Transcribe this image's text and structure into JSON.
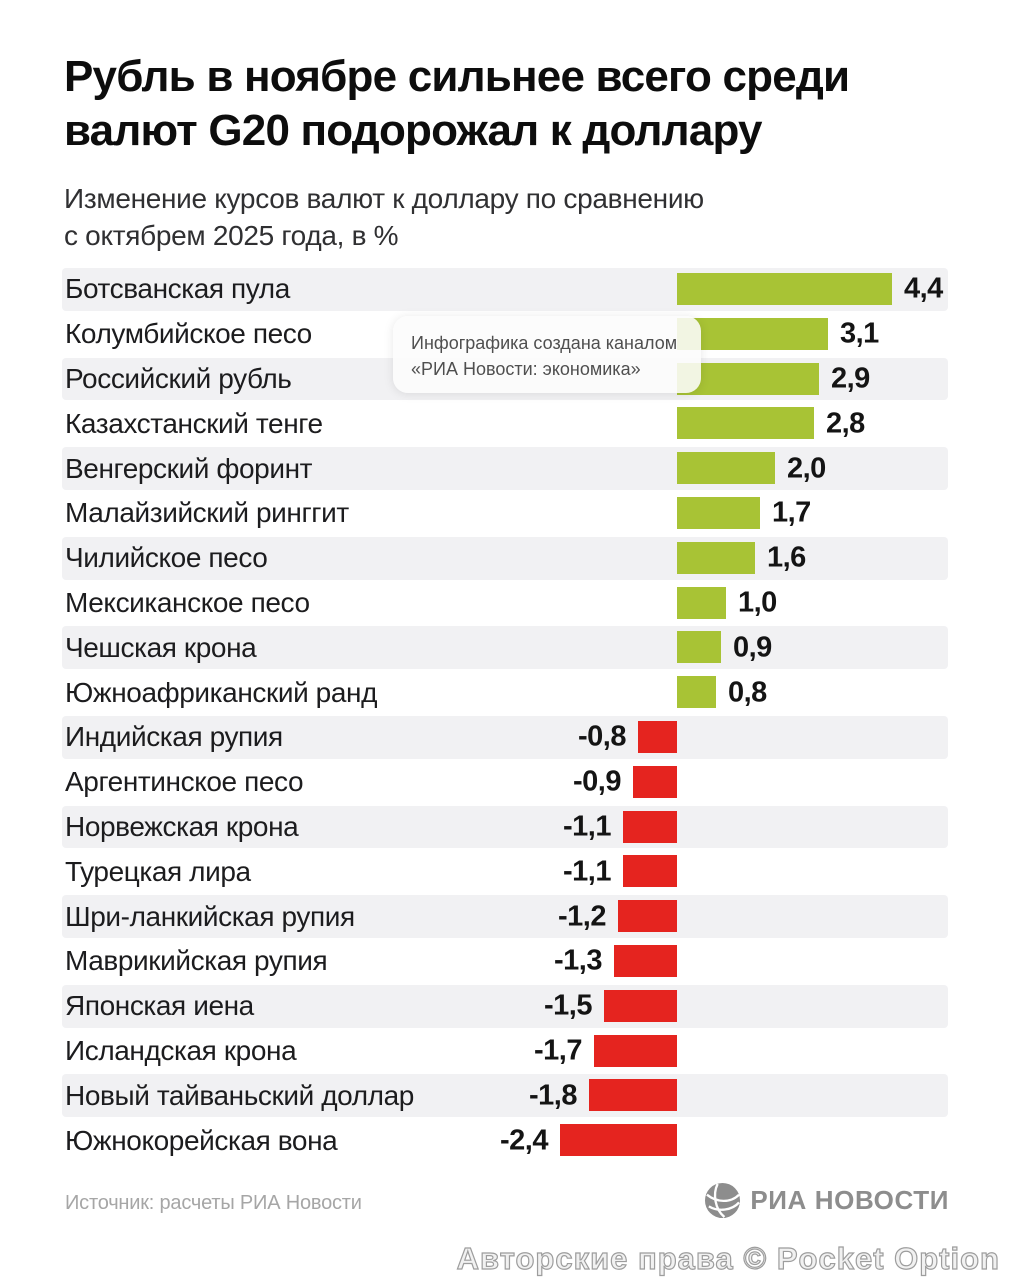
{
  "title": {
    "line1": "Рубль в ноябре сильнее всего среди",
    "line2": "валют G20 подорожал к доллару"
  },
  "subtitle": {
    "line1": "Изменение курсов валют к доллару по сравнению",
    "line2": "с октябрем 2025 года, в %"
  },
  "tooltip": {
    "line1": "Инфографика создана каналом",
    "line2": "«РИА Новости: экономика»"
  },
  "footer": {
    "source": "Источник: расчеты РИА Новости",
    "logo_text": "РИА НОВОСТИ",
    "logo_icon": "ria-globe-icon"
  },
  "watermark": "Авторские права © Pocket Option",
  "colors": {
    "positive_bar": "#a8c335",
    "negative_bar": "#e5241f",
    "row_stripe": "#f1f1f3",
    "title_text": "#0d0d0d",
    "muted_text": "#a6a6a6",
    "logo_gray": "#8d8d8d"
  },
  "chart_data": {
    "type": "bar",
    "orientation": "horizontal",
    "title": "Рубль в ноябре сильнее всего среди валют G20 подорожал к доллару",
    "subtitle": "Изменение курсов валют к доллару по сравнению с октябрем 2025 года, в %",
    "unit": "%",
    "xlim": [
      -2.4,
      4.4
    ],
    "grid": false,
    "legend": false,
    "categories": [
      "Ботсванская пула",
      "Колумбийское песо",
      "Российский рубль",
      "Казахстанский тенге",
      "Венгерский форинт",
      "Малайзийский ринггит",
      "Чилийское песо",
      "Мексиканское песо",
      "Чешская крона",
      "Южноафриканский ранд",
      "Индийская рупия",
      "Аргентинское песо",
      "Норвежская крона",
      "Турецкая лира",
      "Шри-ланкийская рупия",
      "Маврикийская рупия",
      "Японская иена",
      "Исландская крона",
      "Новый тайваньский доллар",
      "Южнокорейская вона"
    ],
    "values": [
      4.4,
      3.1,
      2.9,
      2.8,
      2.0,
      1.7,
      1.6,
      1.0,
      0.9,
      0.8,
      -0.8,
      -0.9,
      -1.1,
      -1.1,
      -1.2,
      -1.3,
      -1.5,
      -1.7,
      -1.8,
      -2.4
    ],
    "value_labels": [
      "4,4",
      "3,1",
      "2,9",
      "2,8",
      "2,0",
      "1,7",
      "1,6",
      "1,0",
      "0,9",
      "0,8",
      "-0,8",
      "-0,9",
      "-1,1",
      "-1,1",
      "-1,2",
      "-1,3",
      "-1,5",
      "-1,7",
      "-1,8",
      "-2,4"
    ]
  }
}
